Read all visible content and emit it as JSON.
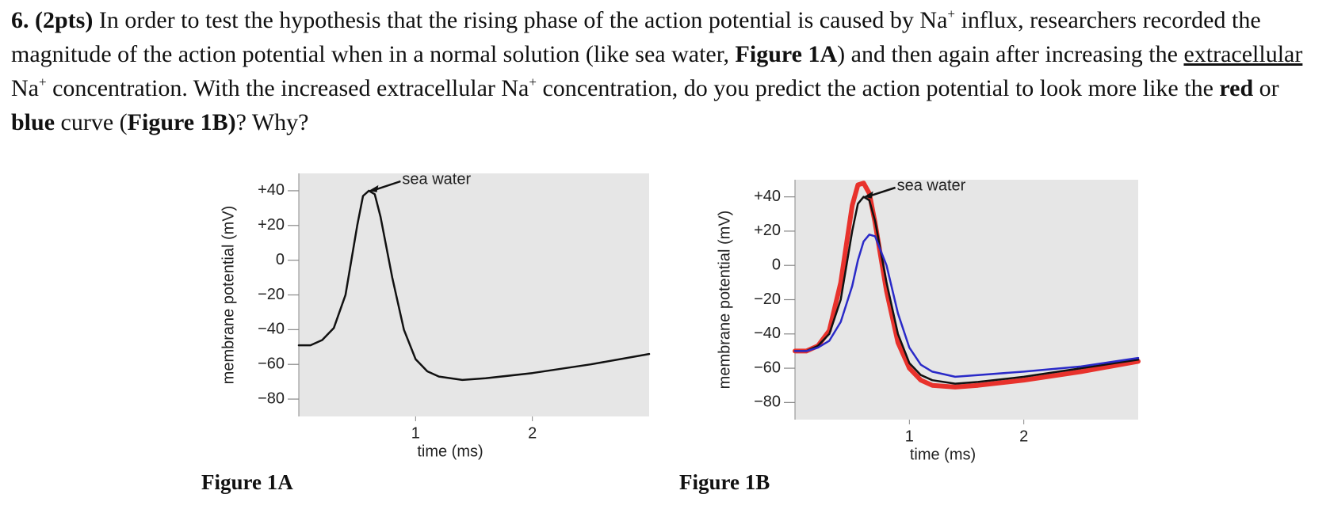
{
  "question": [
    {
      "text": "6.  (2pts)",
      "style": "bold"
    },
    {
      "text": " In order to test the hypothesis that the rising phase of the action potential is caused by Na",
      "style": "normal"
    },
    {
      "text": "+",
      "style": "sup"
    },
    {
      "text": " influx, researchers recorded the magnitude of the action potential when in a normal solution (like sea water, ",
      "style": "normal"
    },
    {
      "text": "Figure 1A",
      "style": "bold"
    },
    {
      "text": ") and then again after increasing the ",
      "style": "normal"
    },
    {
      "text": "extracellular",
      "style": "underline"
    },
    {
      "text": " Na",
      "style": "normal"
    },
    {
      "text": "+",
      "style": "sup"
    },
    {
      "text": " concentration. With the increased extracellular Na",
      "style": "normal"
    },
    {
      "text": "+",
      "style": "sup"
    },
    {
      "text": " concentration, do you predict the action potential to look more like the ",
      "style": "normal"
    },
    {
      "text": "red",
      "style": "bold"
    },
    {
      "text": " or ",
      "style": "normal"
    },
    {
      "text": "blue",
      "style": "bold"
    },
    {
      "text": " curve (",
      "style": "normal"
    },
    {
      "text": "Figure 1B)",
      "style": "bold"
    },
    {
      "text": "? Why?",
      "style": "normal"
    }
  ],
  "chart_data": [
    {
      "type": "line",
      "caption": "Figure 1A",
      "annotation": "sea water",
      "x_label": "time (ms)",
      "y_label": "membrane potential (mV)",
      "xlim": [
        0,
        3
      ],
      "xticks": [
        1,
        2
      ],
      "ylim": [
        -90,
        50
      ],
      "yticks": [
        {
          "value": 40,
          "label": "+40"
        },
        {
          "value": 20,
          "label": "+20"
        },
        0,
        {
          "value": -20,
          "label": "−20"
        },
        {
          "value": -40,
          "label": "−40"
        },
        {
          "value": -60,
          "label": "−60"
        },
        {
          "value": -80,
          "label": "−80"
        }
      ],
      "background": "#e6e6e6",
      "x": [
        0,
        0.1,
        0.2,
        0.3,
        0.4,
        0.5,
        0.55,
        0.6,
        0.65,
        0.7,
        0.8,
        0.9,
        1.0,
        1.1,
        1.2,
        1.4,
        1.6,
        2.0,
        2.5,
        3.0
      ],
      "series": [
        {
          "color": "#111111",
          "values": [
            -49,
            -49,
            -46,
            -39,
            -20,
            20,
            37,
            40,
            38,
            25,
            -10,
            -40,
            -57,
            -64,
            -67,
            -69,
            -68,
            -65,
            -60,
            -54
          ]
        }
      ]
    },
    {
      "type": "line",
      "caption": "Figure 1B",
      "annotation": "sea water",
      "x_label": "time (ms)",
      "y_label": "membrane potential (mV)",
      "xlim": [
        0,
        3
      ],
      "xticks": [
        1,
        2
      ],
      "ylim": [
        -90,
        50
      ],
      "yticks": [
        {
          "value": 40,
          "label": "+40"
        },
        {
          "value": 20,
          "label": "+20"
        },
        0,
        {
          "value": -20,
          "label": "−20"
        },
        {
          "value": -40,
          "label": "−40"
        },
        {
          "value": -60,
          "label": "−60"
        },
        {
          "value": -80,
          "label": "−80"
        }
      ],
      "background": "#e6e6e6",
      "x": [
        0,
        0.1,
        0.2,
        0.3,
        0.4,
        0.5,
        0.55,
        0.6,
        0.65,
        0.7,
        0.8,
        0.9,
        1.0,
        1.1,
        1.2,
        1.4,
        1.6,
        2.0,
        2.5,
        3.0
      ],
      "series": [
        {
          "color": "#e8322c",
          "width": 6,
          "values": [
            -50,
            -50,
            -47,
            -38,
            -10,
            35,
            47,
            48,
            42,
            25,
            -15,
            -45,
            -60,
            -67,
            -70,
            -71,
            -70,
            -67,
            -62,
            -56
          ]
        },
        {
          "color": "#111111",
          "width": 2.5,
          "values": [
            -50,
            -50,
            -47,
            -40,
            -20,
            20,
            36,
            40,
            38,
            26,
            -10,
            -40,
            -57,
            -64,
            -67,
            -69,
            -68,
            -65,
            -60,
            -55
          ]
        },
        {
          "color": "#2a2ac8",
          "width": 2.5,
          "values": [
            -50,
            -50,
            -48,
            -44,
            -33,
            -12,
            3,
            14,
            18,
            17,
            0,
            -28,
            -48,
            -58,
            -62,
            -65,
            -64,
            -62,
            -59,
            -54
          ]
        }
      ]
    }
  ]
}
